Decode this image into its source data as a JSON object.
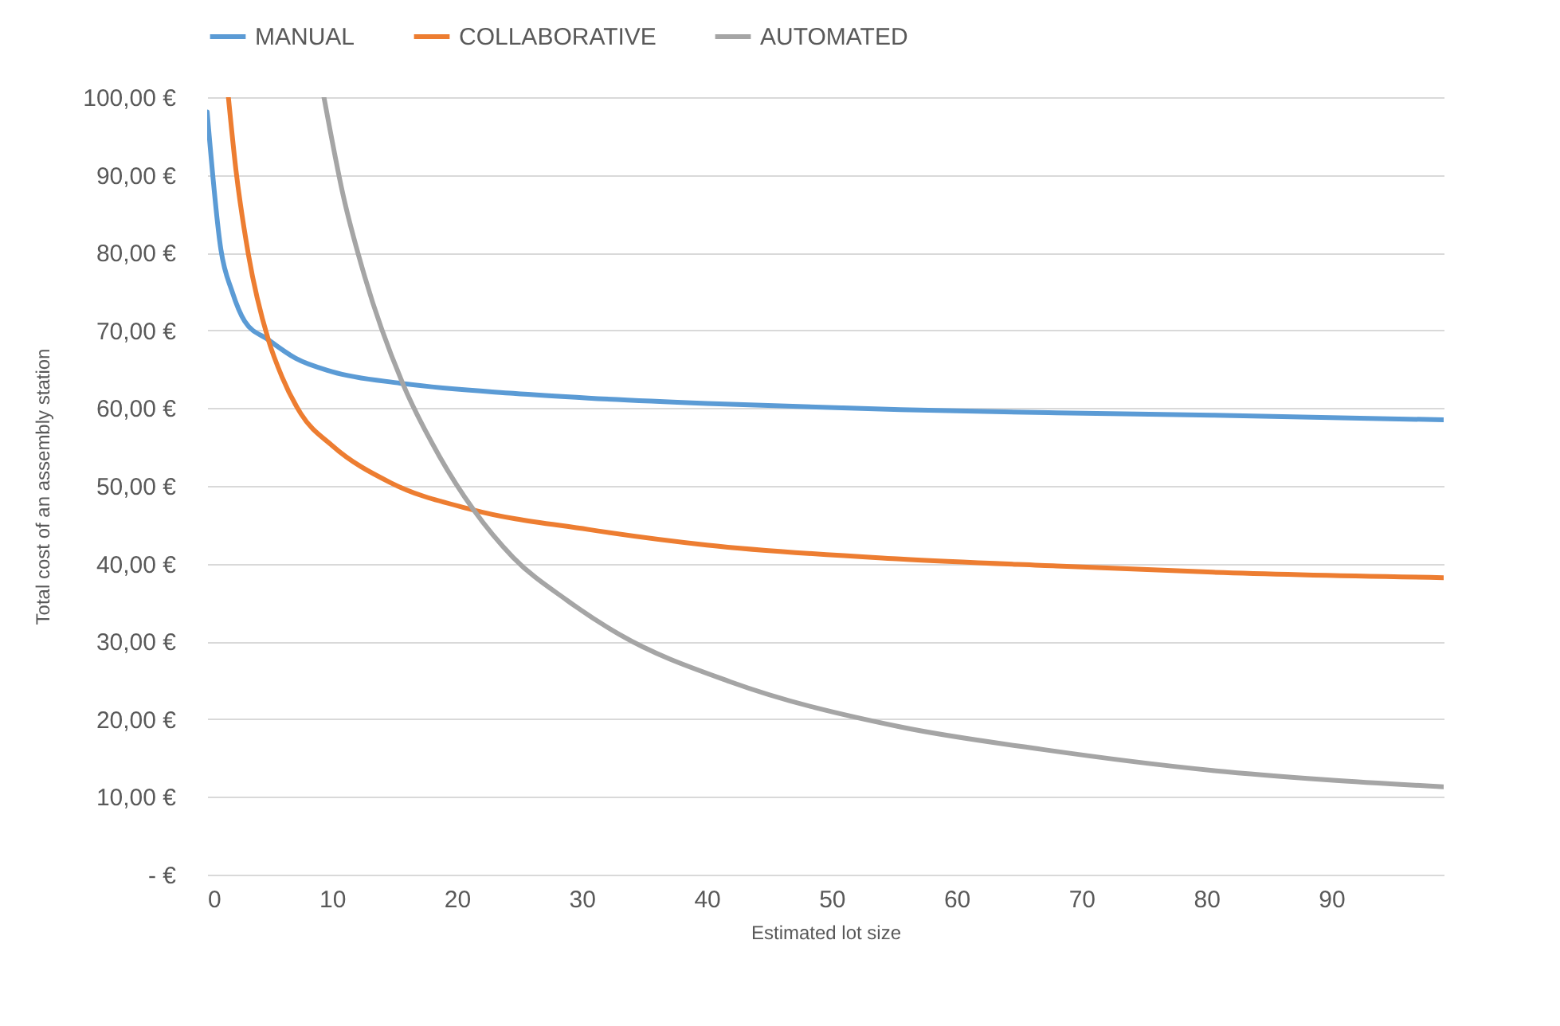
{
  "chart_data": {
    "type": "line",
    "xlabel": "Estimated lot size",
    "ylabel": "Total cost of an assembly station",
    "xlim": [
      0,
      99
    ],
    "xticks": [
      0,
      10,
      20,
      30,
      40,
      50,
      60,
      70,
      80,
      90
    ],
    "ylim": [
      0,
      100
    ],
    "yticks": [
      {
        "value": 0,
        "label": "-   €"
      },
      {
        "value": 10,
        "label": "10,00 €"
      },
      {
        "value": 20,
        "label": "20,00 €"
      },
      {
        "value": 30,
        "label": "30,00 €"
      },
      {
        "value": 40,
        "label": "40,00 €"
      },
      {
        "value": 50,
        "label": "50,00 €"
      },
      {
        "value": 60,
        "label": "60,00 €"
      },
      {
        "value": 70,
        "label": "70,00 €"
      },
      {
        "value": 80,
        "label": "80,00 €"
      },
      {
        "value": 90,
        "label": "90,00 €"
      },
      {
        "value": 100,
        "label": "100,00 €"
      }
    ],
    "grid": "y",
    "legend": "top",
    "marker": "none",
    "line_style": "solid",
    "series": [
      {
        "name": "MANUAL",
        "color": "#5b9bd5",
        "x": [
          0,
          1.1,
          2,
          3,
          4.9,
          7.1,
          10,
          15.5,
          24.5,
          30.5,
          40,
          55.5,
          68,
          80.5,
          99
        ],
        "values": [
          98.1,
          80.4,
          75,
          71.2,
          68.8,
          66.4,
          64.7,
          63.2,
          61.9,
          61.3,
          60.6,
          59.8,
          59.4,
          59.1,
          58.5
        ]
      },
      {
        "name": "COLLABORATIVE",
        "color": "#ed7d31",
        "x": [
          1.7,
          2.3,
          3.3,
          4.9,
          6,
          7.5,
          10,
          14.7,
          21.1,
          30.5,
          40,
          55.5,
          68,
          80.5,
          99
        ],
        "values": [
          100,
          90.7,
          79.8,
          68.8,
          64,
          59.3,
          55.2,
          50.4,
          47,
          44.4,
          42.4,
          40.6,
          39.7,
          38.9,
          38.2
        ]
      },
      {
        "name": "AUTOMATED",
        "color": "#a5a5a5",
        "x": [
          9.35,
          10.9,
          12.6,
          15.6,
          18.6,
          21.3,
          24.5,
          28.8,
          33,
          41.9,
          55.5,
          66.9,
          80.5,
          89.7,
          99
        ],
        "values": [
          100,
          87.3,
          77,
          63.4,
          53.8,
          47,
          40.8,
          35.3,
          30.9,
          24.8,
          19,
          16.1,
          13.4,
          12.2,
          11.3
        ]
      }
    ]
  }
}
